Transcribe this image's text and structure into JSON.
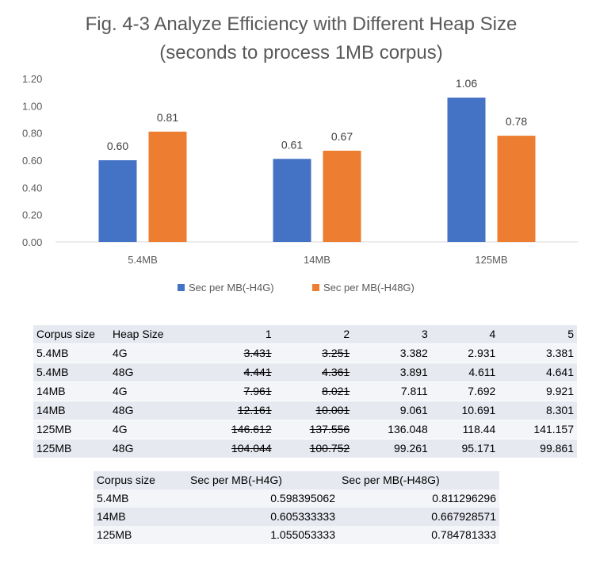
{
  "chart_data": {
    "type": "bar",
    "title_line1": "Fig. 4-3 Analyze Efficiency with Different Heap Size",
    "title_line2": "(seconds to process 1MB corpus)",
    "categories": [
      "5.4MB",
      "14MB",
      "125MB"
    ],
    "series": [
      {
        "name": "Sec per MB(-H4G)",
        "values": [
          0.6,
          0.61,
          1.06
        ],
        "labels": [
          "0.60",
          "0.61",
          "1.06"
        ],
        "color": "#4472c4"
      },
      {
        "name": "Sec per MB(-H48G)",
        "values": [
          0.81,
          0.67,
          0.78
        ],
        "labels": [
          "0.81",
          "0.67",
          "0.78"
        ],
        "color": "#ed7d31"
      }
    ],
    "ylim": [
      0,
      1.2
    ],
    "yticks": [
      "0.00",
      "0.20",
      "0.40",
      "0.60",
      "0.80",
      "1.00",
      "1.20"
    ],
    "grid": false,
    "legend": "bottom"
  },
  "runs_table": {
    "header": [
      "Corpus size",
      "Heap Size",
      "1",
      "2",
      "3",
      "4",
      "5"
    ],
    "rows": [
      [
        "5.4MB",
        "4G",
        "3.431",
        "3.251",
        "3.382",
        "2.931",
        "3.381"
      ],
      [
        "5.4MB",
        "48G",
        "4.441",
        "4.361",
        "3.891",
        "4.611",
        "4.641"
      ],
      [
        "14MB",
        "4G",
        "7.961",
        "8.021",
        "7.811",
        "7.692",
        "9.921"
      ],
      [
        "14MB",
        "48G",
        "12.161",
        "10.001",
        "9.061",
        "10.691",
        "8.301"
      ],
      [
        "125MB",
        "4G",
        "146.612",
        "137.556",
        "136.048",
        "118.44",
        "141.157"
      ],
      [
        "125MB",
        "48G",
        "104.044",
        "100.752",
        "99.261",
        "95.171",
        "99.861"
      ]
    ]
  },
  "summary_table": {
    "header": [
      "Corpus size",
      "Sec per MB(-H4G)",
      "Sec per MB(-H48G)"
    ],
    "rows": [
      [
        "5.4MB",
        "0.598395062",
        "0.811296296"
      ],
      [
        "14MB",
        "0.605333333",
        "0.667928571"
      ],
      [
        "125MB",
        "1.055053333",
        "0.784781333"
      ]
    ]
  }
}
